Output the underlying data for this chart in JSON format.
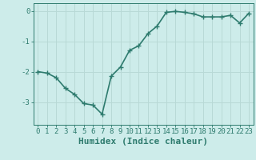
{
  "x": [
    0,
    1,
    2,
    3,
    4,
    5,
    6,
    7,
    8,
    9,
    10,
    11,
    12,
    13,
    14,
    15,
    16,
    17,
    18,
    19,
    20,
    21,
    22,
    23
  ],
  "y": [
    -2.0,
    -2.05,
    -2.2,
    -2.55,
    -2.75,
    -3.05,
    -3.1,
    -3.4,
    -2.15,
    -1.85,
    -1.3,
    -1.15,
    -0.75,
    -0.5,
    -0.05,
    -0.02,
    -0.05,
    -0.1,
    -0.2,
    -0.2,
    -0.2,
    -0.15,
    -0.4,
    -0.08
  ],
  "line_color": "#2e7b6e",
  "marker": "+",
  "marker_size": 4,
  "background_color": "#cdecea",
  "grid_color": "#b8d9d6",
  "xlabel": "Humidex (Indice chaleur)",
  "xlabel_fontsize": 8,
  "xlim": [
    -0.5,
    23.5
  ],
  "ylim": [
    -3.75,
    0.25
  ],
  "yticks": [
    0,
    -1,
    -2,
    -3
  ],
  "xticks": [
    0,
    1,
    2,
    3,
    4,
    5,
    6,
    7,
    8,
    9,
    10,
    11,
    12,
    13,
    14,
    15,
    16,
    17,
    18,
    19,
    20,
    21,
    22,
    23
  ],
  "tick_fontsize": 6.5,
  "linewidth": 1.2
}
